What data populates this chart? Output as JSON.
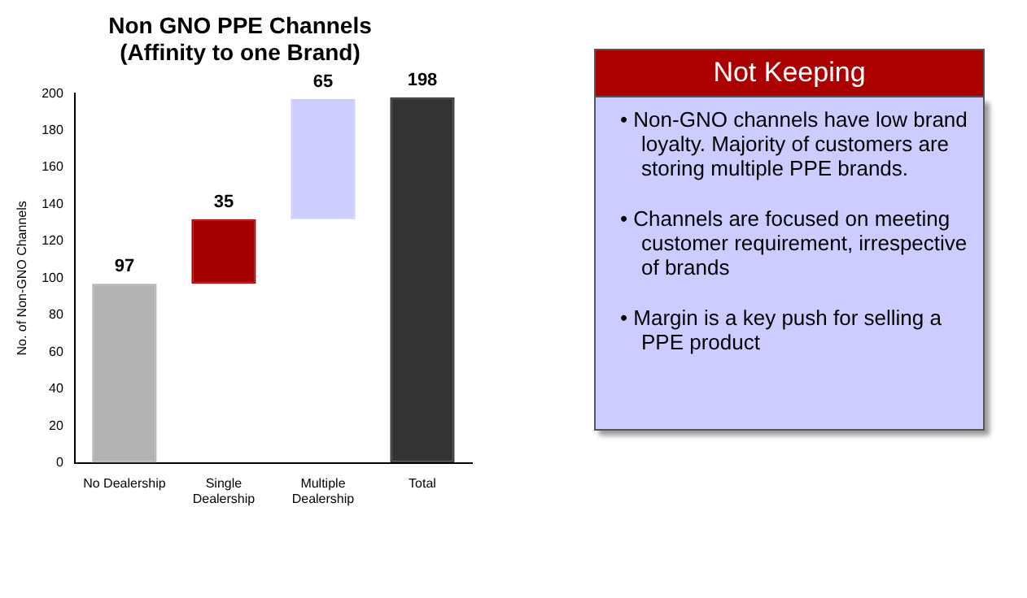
{
  "chart_data": [
    {
      "type": "bar",
      "title": "Non GNO PPE Channels\n(Affinity to one Brand)",
      "ylabel": "No. of Non-GNO Channels",
      "categories": [
        "No Dealership",
        "Single\nDealership",
        "Multiple\nDealership",
        "Total"
      ],
      "values": [
        97,
        35,
        65,
        198
      ],
      "base": [
        0,
        97,
        132,
        0
      ],
      "colors": [
        "#b2b2b2",
        "#a50000",
        "#ccccff",
        "#333333"
      ],
      "ylim": [
        0,
        200
      ],
      "yticks": [
        0,
        20,
        40,
        60,
        80,
        100,
        120,
        140,
        160,
        180,
        200
      ],
      "data_labels": true,
      "grid": false,
      "legend": false
    },
    {
      "type": "other",
      "title": "Not Keeping",
      "annotations": [
        "• Non-GNO channels have low brand loyalty. Majority of customers are storing multiple PPE brands.",
        "• Channels are focused on meeting customer requirement, irrespective of brands",
        "• Margin is a key push for selling a PPE product"
      ]
    }
  ]
}
